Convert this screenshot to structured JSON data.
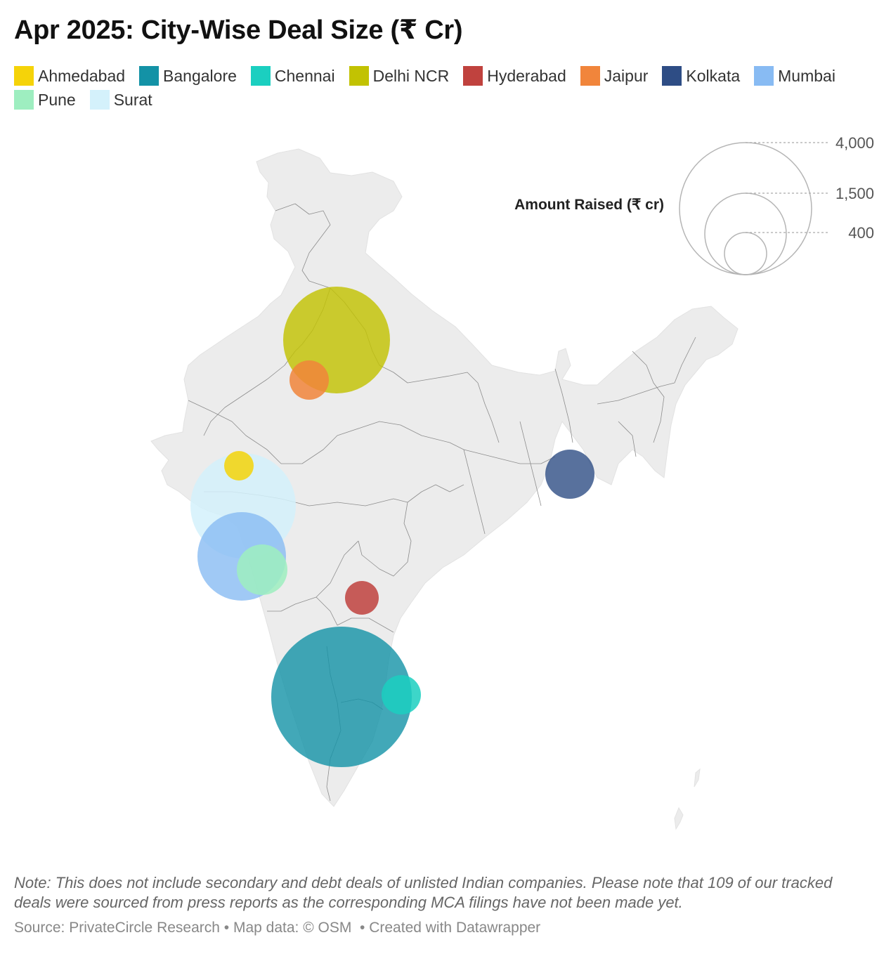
{
  "title": "Apr 2025: City-Wise Deal Size (₹ Cr)",
  "legend": [
    {
      "label": "Ahmedabad",
      "color": "#f5d309"
    },
    {
      "label": "Bangalore",
      "color": "#1392a6"
    },
    {
      "label": "Chennai",
      "color": "#1bcfc0"
    },
    {
      "label": "Delhi NCR",
      "color": "#c2c202"
    },
    {
      "label": "Hyderabad",
      "color": "#c0423e"
    },
    {
      "label": "Jaipur",
      "color": "#f1853b"
    },
    {
      "label": "Kolkata",
      "color": "#2e4d85"
    },
    {
      "label": "Mumbai",
      "color": "#88bbf3"
    },
    {
      "label": "Pune",
      "color": "#9eeec0"
    },
    {
      "label": "Surat",
      "color": "#d4f1fb"
    }
  ],
  "size_legend": {
    "title": "Amount Raised (₹ cr)",
    "items": [
      {
        "label": "4,000",
        "value": 4000
      },
      {
        "label": "1,500",
        "value": 1500
      },
      {
        "label": "400",
        "value": 400
      }
    ]
  },
  "cities": [
    {
      "name": "Surat",
      "color": "#d4f1fb",
      "amount": 2540
    },
    {
      "name": "Delhi NCR",
      "color": "#c2c202",
      "amount": 2600
    },
    {
      "name": "Bangalore",
      "color": "#1392a6",
      "amount": 4450
    },
    {
      "name": "Mumbai",
      "color": "#88bbf3",
      "amount": 1780
    },
    {
      "name": "Jaipur",
      "color": "#f1853b",
      "amount": 360
    },
    {
      "name": "Kolkata",
      "color": "#2e4d85",
      "amount": 560
    },
    {
      "name": "Pune",
      "color": "#9eeec0",
      "amount": 590
    },
    {
      "name": "Hyderabad",
      "color": "#c0423e",
      "amount": 250
    },
    {
      "name": "Chennai",
      "color": "#1bcfc0",
      "amount": 360
    },
    {
      "name": "Ahmedabad",
      "color": "#f5d309",
      "amount": 190
    }
  ],
  "note": "Note: This does not include secondary and debt deals of unlisted Indian companies. Please note that 109 of our tracked deals were sourced from press reports as the corresponding MCA filings have not been made yet.",
  "source": {
    "text": "Source: PrivateCircle Research",
    "map_credit": "Map data: © OSM",
    "created": "Created with Datawrapper"
  }
}
